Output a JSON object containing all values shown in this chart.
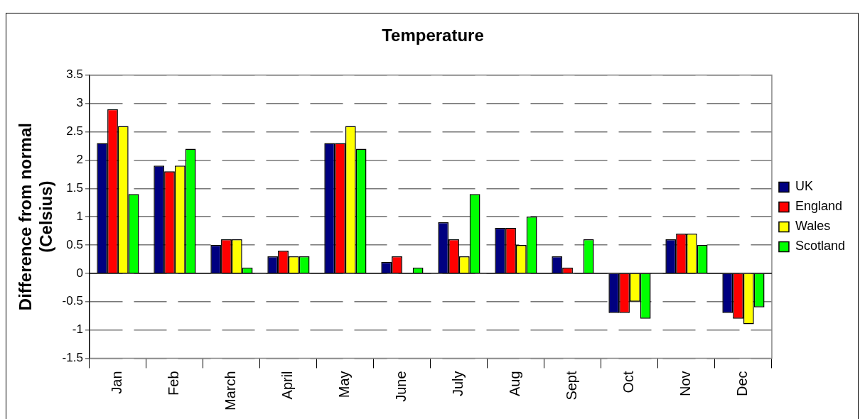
{
  "chart_data": {
    "type": "bar",
    "title": "Temperature",
    "ylabel": "Difference from normal (Celsius)",
    "categories": [
      "Jan",
      "Feb",
      "March",
      "April",
      "May",
      "June",
      "July",
      "Aug",
      "Sept",
      "Oct",
      "Nov",
      "Dec"
    ],
    "series": [
      {
        "name": "UK",
        "color": "#000080",
        "values": [
          2.3,
          1.9,
          0.5,
          0.3,
          2.3,
          0.2,
          0.9,
          0.8,
          0.3,
          -0.7,
          0.6,
          -0.7
        ]
      },
      {
        "name": "England",
        "color": "#ff0000",
        "values": [
          2.9,
          1.8,
          0.6,
          0.4,
          2.3,
          0.3,
          0.6,
          0.8,
          0.1,
          -0.7,
          0.7,
          -0.8
        ]
      },
      {
        "name": "Wales",
        "color": "#ffff00",
        "values": [
          2.6,
          1.9,
          0.6,
          0.3,
          2.6,
          0,
          0.3,
          0.5,
          0,
          -0.5,
          0.7,
          -0.9
        ]
      },
      {
        "name": "Scotland",
        "color": "#00ff00",
        "values": [
          1.4,
          2.2,
          0.1,
          0.3,
          2.2,
          0.1,
          1.4,
          1.0,
          0.6,
          -0.8,
          0.5,
          -0.6
        ]
      }
    ],
    "ylim": [
      -1.5,
      3.5
    ],
    "yticks": [
      -1.5,
      -1,
      -0.5,
      0,
      0.5,
      1,
      1.5,
      2,
      2.5,
      3,
      3.5
    ],
    "grid": "y",
    "legend": "right",
    "ref_lines": [
      {
        "axis": "y",
        "value": 0,
        "color": "#000000"
      }
    ]
  }
}
